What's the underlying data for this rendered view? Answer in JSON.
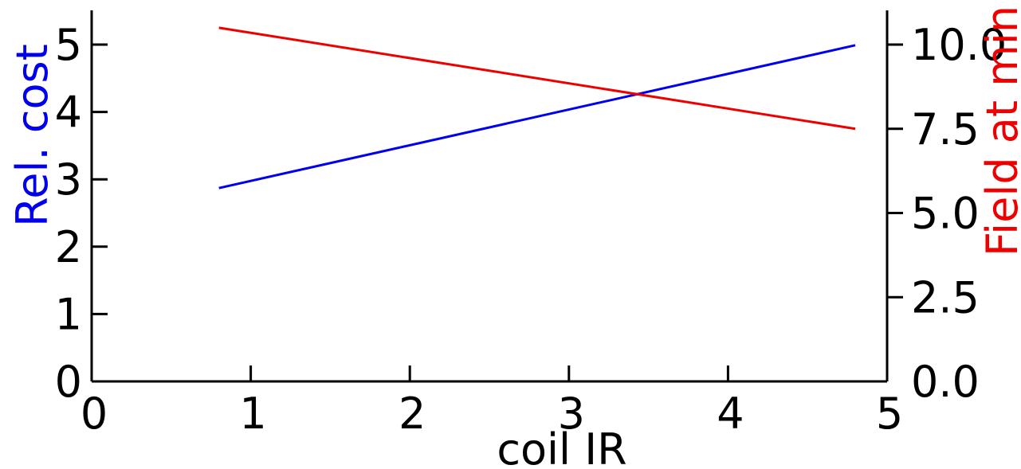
{
  "chart_data": {
    "type": "line",
    "xlabel": "coil IR",
    "ylabel_left": "Rel. cost",
    "ylabel_right": "Field at min",
    "xlim": [
      0,
      5
    ],
    "ylim_left": [
      0,
      5.5
    ],
    "ylim_right": [
      0,
      11
    ],
    "x_ticks": [
      0,
      1,
      2,
      3,
      4,
      5
    ],
    "y_left_ticks": [
      0,
      1,
      2,
      3,
      4,
      5
    ],
    "y_right_ticks": [
      0,
      2.5,
      5,
      7.5,
      10
    ],
    "y_right_tick_labels": [
      "0.0",
      "2.5",
      "5.0",
      "7.5",
      "10.0"
    ],
    "grid": false,
    "series": [
      {
        "axis": "left",
        "color": "#0000ee",
        "x": [
          0.8,
          4.8
        ],
        "y": [
          2.87,
          4.99
        ]
      },
      {
        "axis": "right",
        "color": "#ee0000",
        "x": [
          0.8,
          4.8
        ],
        "y": [
          10.5,
          7.5
        ]
      }
    ],
    "colors": {
      "left_axis_label": "#0000ee",
      "right_axis_label": "#ee0000",
      "axes": "#000000"
    }
  }
}
